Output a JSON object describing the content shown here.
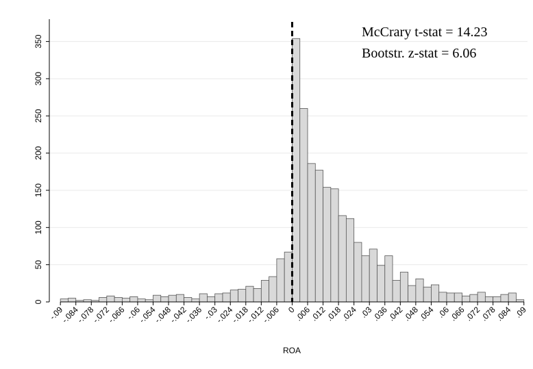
{
  "chart_data": {
    "type": "histogram",
    "x_label": "ROA",
    "annotations": [
      "McCrary t-stat = 14.23",
      "Bootstr. z-stat = 6.06"
    ],
    "cutoff": 0,
    "color": "#d9d9d9",
    "bins": [
      -0.09,
      -0.087,
      -0.084,
      -0.081,
      -0.078,
      -0.075,
      -0.072,
      -0.069,
      -0.066,
      -0.063,
      -0.06,
      -0.057,
      -0.054,
      -0.051,
      -0.048,
      -0.045,
      -0.042,
      -0.039,
      -0.036,
      -0.033,
      -0.03,
      -0.027,
      -0.024,
      -0.021,
      -0.018,
      -0.015,
      -0.012,
      -0.009,
      -0.006,
      -0.003,
      0,
      0.003,
      0.006,
      0.009,
      0.012,
      0.015,
      0.018,
      0.021,
      0.024,
      0.027,
      0.03,
      0.033,
      0.036,
      0.039,
      0.042,
      0.045,
      0.048,
      0.051,
      0.054,
      0.057,
      0.06,
      0.063,
      0.066,
      0.069,
      0.072,
      0.075,
      0.078,
      0.081,
      0.084,
      0.087,
      0.09
    ],
    "values": [
      4,
      5,
      2,
      3,
      2,
      6,
      8,
      6,
      5,
      7,
      4,
      3,
      9,
      7,
      9,
      10,
      6,
      4,
      11,
      7,
      11,
      12,
      16,
      17,
      21,
      18,
      29,
      34,
      58,
      67,
      354,
      260,
      186,
      177,
      154,
      152,
      116,
      112,
      80,
      62,
      71,
      49,
      62,
      29,
      40,
      22,
      31,
      20,
      23,
      13,
      12,
      12,
      8,
      10,
      13,
      7,
      7,
      10,
      12,
      3
    ],
    "xlim": [
      -0.0943,
      0.0914
    ],
    "ylim": [
      0,
      380
    ],
    "yticks": [
      0,
      50,
      100,
      150,
      200,
      250,
      300,
      350
    ],
    "xticks": [
      {
        "value": -0.09,
        "label": "-.09"
      },
      {
        "value": -0.084,
        "label": "-.084"
      },
      {
        "value": -0.078,
        "label": "-.078"
      },
      {
        "value": -0.072,
        "label": "-.072"
      },
      {
        "value": -0.066,
        "label": "-.066"
      },
      {
        "value": -0.06,
        "label": "-.06"
      },
      {
        "value": -0.054,
        "label": "-.054"
      },
      {
        "value": -0.048,
        "label": "-.048"
      },
      {
        "value": -0.042,
        "label": "-.042"
      },
      {
        "value": -0.036,
        "label": "-.036"
      },
      {
        "value": -0.03,
        "label": "-.03"
      },
      {
        "value": -0.024,
        "label": "-.024"
      },
      {
        "value": -0.018,
        "label": "-.018"
      },
      {
        "value": -0.012,
        "label": "-.012"
      },
      {
        "value": -0.006,
        "label": "-.006"
      },
      0,
      {
        "value": 0.006,
        "label": ".006"
      },
      {
        "value": 0.012,
        "label": ".012"
      },
      {
        "value": 0.018,
        "label": ".018"
      },
      {
        "value": 0.024,
        "label": ".024"
      },
      {
        "value": 0.03,
        "label": ".03"
      },
      {
        "value": 0.036,
        "label": ".036"
      },
      {
        "value": 0.042,
        "label": ".042"
      },
      {
        "value": 0.048,
        "label": ".048"
      },
      {
        "value": 0.054,
        "label": ".054"
      },
      {
        "value": 0.06,
        "label": ".06"
      },
      {
        "value": 0.066,
        "label": ".066"
      },
      {
        "value": 0.072,
        "label": ".072"
      },
      {
        "value": 0.078,
        "label": ".078"
      },
      {
        "value": 0.084,
        "label": ".084"
      },
      {
        "value": 0.09,
        "label": ".09"
      }
    ],
    "grid": true
  }
}
